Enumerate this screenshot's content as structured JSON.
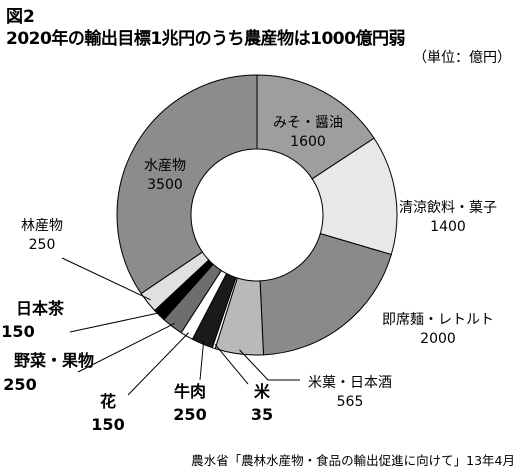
{
  "figure": {
    "label": "図2",
    "title": "2020年の輸出目標1兆円のうち農産物は1000億円弱",
    "unit": "（単位：億円）",
    "source": "農水省「農林水産物・食品の輸出促進に向けて」13年4月"
  },
  "chart_data": {
    "type": "pie",
    "title": "2020年の輸出目標1兆円のうち農産物は1000億円弱",
    "unit": "（単位：億円）",
    "slices": [
      {
        "name": "みそ・醤油",
        "value": 1600,
        "color": "#9e9e9e"
      },
      {
        "name": "清涼飲料・菓子",
        "value": 1400,
        "color": "#e8e8e8"
      },
      {
        "name": "即席麺・レトルト",
        "value": 2000,
        "color": "#8a8a8a"
      },
      {
        "name": "米菓・日本酒",
        "value": 565,
        "color": "#b9b9b9"
      },
      {
        "name": "米",
        "value": 35,
        "color": "#ffffff"
      },
      {
        "name": "牛肉",
        "value": 250,
        "color": "#1a1a1a"
      },
      {
        "name": "花",
        "value": 150,
        "color": "#ffffff"
      },
      {
        "name": "野菜・果物",
        "value": 250,
        "color": "#6e6e6e"
      },
      {
        "name": "日本茶",
        "value": 150,
        "color": "#000000"
      },
      {
        "name": "林産物",
        "value": 250,
        "color": "#e0e0e0"
      },
      {
        "name": "水産物",
        "value": 3500,
        "color": "#8c8c8c"
      }
    ]
  }
}
